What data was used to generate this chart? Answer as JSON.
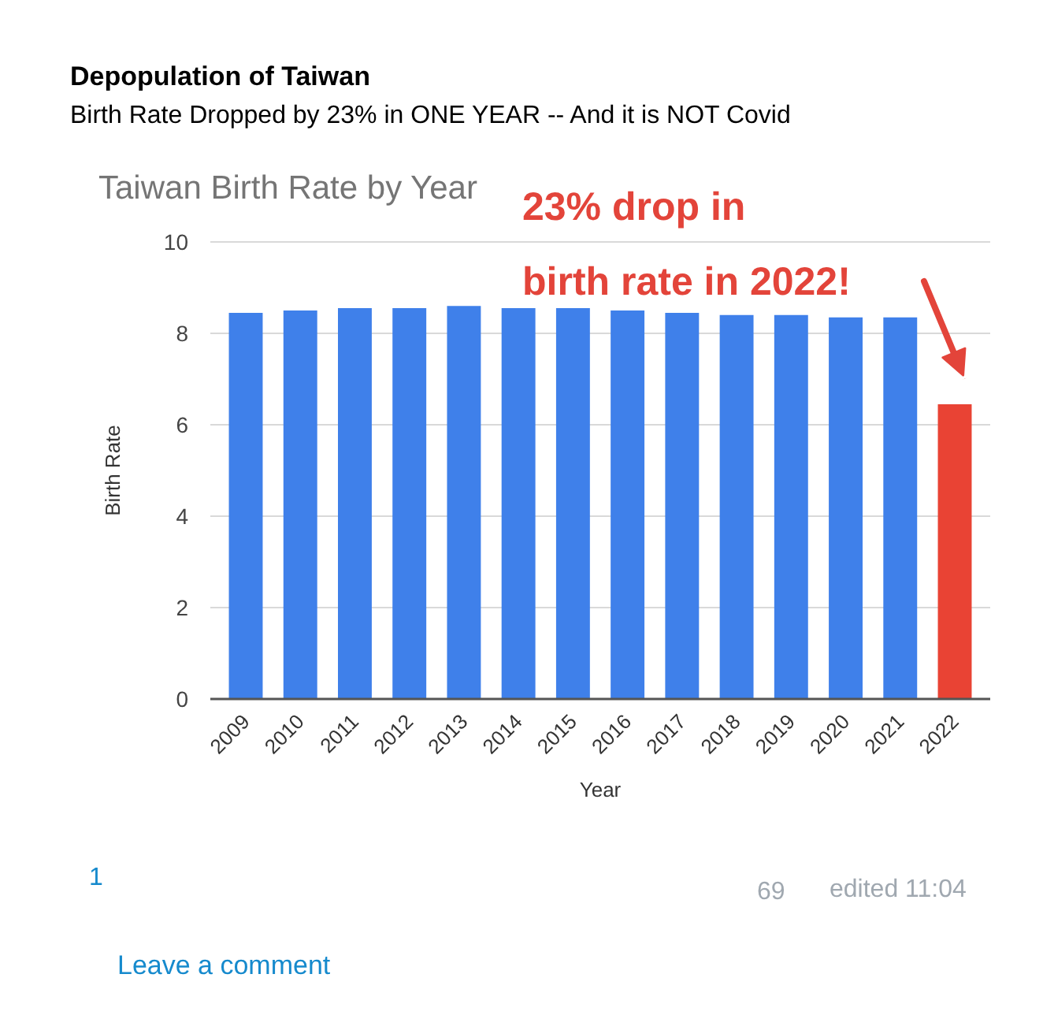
{
  "chart_data": {
    "type": "bar",
    "title": "Depopulation of Taiwan",
    "subtitle": "Birth Rate Dropped by 23% in ONE YEAR -- And it is NOT Covid",
    "xlabel": "Year",
    "ylabel": "Birth Rate",
    "categories": [
      "2009",
      "2010",
      "2011",
      "2012",
      "2013",
      "2014",
      "2015",
      "2016",
      "2017",
      "2018",
      "2019",
      "2020",
      "2021",
      "2022"
    ],
    "values": [
      8.45,
      8.5,
      8.55,
      8.55,
      8.6,
      8.55,
      8.55,
      8.5,
      8.45,
      8.4,
      8.4,
      8.35,
      8.35,
      6.45
    ],
    "colors": [
      "#3f80ea",
      "#3f80ea",
      "#3f80ea",
      "#3f80ea",
      "#3f80ea",
      "#3f80ea",
      "#3f80ea",
      "#3f80ea",
      "#3f80ea",
      "#3f80ea",
      "#3f80ea",
      "#3f80ea",
      "#3f80ea",
      "#e94334"
    ],
    "ylim": [
      0,
      10
    ],
    "yticks": [
      0,
      2,
      4,
      6,
      8,
      10
    ],
    "grid": "y",
    "annotations": [
      "Taiwan Birth Rate by Year",
      "23% drop in\nbirth rate in 2022!",
      "1",
      "69",
      "edited 11:04",
      "Leave a comment"
    ]
  }
}
